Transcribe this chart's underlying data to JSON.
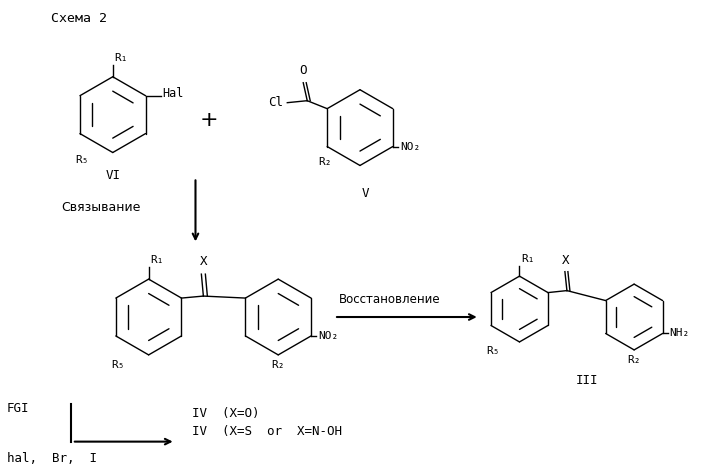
{
  "title": "Схема 2",
  "bg_color": "#ffffff",
  "text_color": "#000000",
  "scheme": {
    "label_vi": "VI",
    "label_v": "V",
    "label_iii": "III",
    "label_binding": "Связывание",
    "label_reduction": "Восстановление",
    "label_fgi": "FGI",
    "label_iv1": "IV  (X=O)",
    "label_iv2": "IV  (X=S  or  X=N-OH",
    "label_hal": "hal,  Br,  I"
  }
}
